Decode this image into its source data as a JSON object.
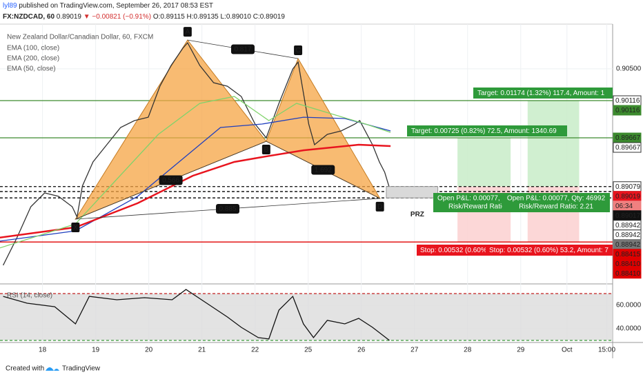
{
  "header": {
    "user": "lyl89",
    "published": "published on TradingView.com, September 26, 2017 08:53 EST",
    "symbol": "FX:NZDCAD, 60",
    "price": "0.89019",
    "change": "▼ −0.00821 (−0.91%)",
    "ohlc": "O:0.89115 H:0.89135 L:0.89010 C:0.89019"
  },
  "chart_data": [
    {
      "type": "line",
      "title": "New Zealand Dollar/Canadian Dollar, 60, FXCM",
      "xlim": [
        -0.8,
        10.73
      ],
      "ylim": [
        0.87921,
        0.91039
      ],
      "grid": true,
      "xticks": [
        {
          "value": 0,
          "label": "18"
        },
        {
          "value": 1,
          "label": "19"
        },
        {
          "value": 2,
          "label": "20"
        },
        {
          "value": 3,
          "label": "21"
        },
        {
          "value": 4,
          "label": "22"
        },
        {
          "value": 5,
          "label": "25"
        },
        {
          "value": 6,
          "label": "26"
        },
        {
          "value": 7,
          "label": "27"
        },
        {
          "value": 8,
          "label": "28"
        },
        {
          "value": 9,
          "label": "29"
        },
        {
          "value": 9.87,
          "label": "Oct"
        },
        {
          "value": 10.62,
          "label": "15:00"
        }
      ],
      "yticks": [
        {
          "value": 0.905,
          "label": "0.90500"
        }
      ],
      "series": [
        {
          "color": "#333333",
          "x": [
            -0.74,
            -0.48,
            -0.22,
            0.04,
            0.3,
            0.56,
            0.65,
            0.75,
            0.95,
            1.21,
            1.47,
            1.73,
            1.99,
            2.21,
            2.42,
            2.64,
            2.73,
            2.96,
            3.22,
            3.48,
            3.74,
            4.0,
            4.21,
            4.45,
            4.71,
            4.81,
            5.01,
            5.12,
            5.36,
            5.62,
            5.88,
            5.97,
            6.21,
            6.34,
            6.44,
            6.55
          ],
          "values": [
            0.8813,
            0.88462,
            0.88836,
            0.89002,
            0.88961,
            0.88836,
            0.88711,
            0.89085,
            0.89376,
            0.89584,
            0.89792,
            0.89875,
            0.89916,
            0.9029,
            0.9054,
            0.90747,
            0.90814,
            0.9054,
            0.90332,
            0.9029,
            0.90166,
            0.89833,
            0.89667,
            0.90083,
            0.90498,
            0.90581,
            0.89833,
            0.89584,
            0.89709,
            0.8975,
            0.89833,
            0.89875,
            0.89584,
            0.89376,
            0.89251,
            0.89019
          ]
        },
        {
          "name": "EMA (100, close)",
          "color": "#1f3fbf",
          "x": [
            -0.81,
            0.62,
            1.79,
            2.57,
            3.35,
            4.13,
            4.91,
            5.69,
            6.55
          ],
          "values": [
            0.8842,
            0.88545,
            0.88961,
            0.89376,
            0.89792,
            0.89833,
            0.89916,
            0.899,
            0.8975
          ]
        },
        {
          "name": "EMA (200, close)",
          "color": "#e8141e",
          "x": [
            -0.81,
            0.62,
            1.79,
            2.83,
            3.61,
            4.13,
            4.91,
            5.95,
            6.55
          ],
          "values": [
            0.88462,
            0.88587,
            0.88878,
            0.8921,
            0.89376,
            0.89434,
            0.89517,
            0.89584,
            0.89567
          ]
        },
        {
          "name": "EMA (50, close)",
          "color": "#7fd36b",
          "x": [
            -0.81,
            0.62,
            1.4,
            2.18,
            2.96,
            3.61,
            4.26,
            4.78,
            5.43,
            6.08,
            6.55
          ],
          "values": [
            0.88337,
            0.88628,
            0.89168,
            0.89709,
            0.90083,
            0.90166,
            0.89875,
            0.90083,
            0.89958,
            0.89833,
            0.89733
          ]
        }
      ],
      "levels": [
        {
          "value": 0.90116,
          "color": "#3c8a2e"
        },
        {
          "value": 0.89667,
          "color": "#3c8a2e"
        },
        {
          "value": 0.89079,
          "color": "#000000",
          "style": "dashed"
        },
        {
          "value": 0.89019,
          "color": "#000000",
          "style": "dashed"
        },
        {
          "value": 0.88942,
          "color": "#000000",
          "style": "dashed"
        },
        {
          "value": 0.8841,
          "color": "#e00000"
        }
      ],
      "pattern": [
        {
          "label": "X",
          "x": 0.62,
          "y": 0.88686
        },
        {
          "label": "A",
          "x": 2.73,
          "y": 0.90847
        },
        {
          "label": "B",
          "x": 4.21,
          "y": 0.89625
        },
        {
          "label": "C",
          "x": 4.81,
          "y": 0.90623
        },
        {
          "label": "D",
          "x": 6.35,
          "y": 0.88936
        }
      ],
      "ratios": [
        "0.817",
        "0.566",
        "1.692",
        "0.885"
      ],
      "prz": {
        "label": "PRZ",
        "x": [
          6.47,
          7.44
        ],
        "y": [
          0.89079,
          0.88942
        ]
      },
      "positions": [
        {
          "x": [
            7.81,
            8.81
          ],
          "entry": 0.89079,
          "target": 0.89667,
          "stop": 0.8841,
          "target_label": "Target: 0.00725 (0.82%) 72.5, Amount: 1340.69",
          "pnl_label": "Open P&L: 0.00077,",
          "rr_label": "Risk/Reward Ratio",
          "stop_label": "Stop: 0.00532 (0.60%"
        },
        {
          "x": [
            9.13,
            10.1
          ],
          "entry": 0.89079,
          "target": 0.90116,
          "stop": 0.8841,
          "target_label": "Target: 0.01174 (1.32%) 117.4, Amount: 1",
          "pnl_label": "Open P&L: 0.00077, Qty: 46992",
          "rr_label": "Risk/Reward Ratio: 2.21",
          "stop_label": "Stop: 0.00532 (0.60%) 53.2, Amount: 7"
        }
      ],
      "price_labels": [
        {
          "value": 0.90116,
          "label": "0.90116",
          "color": "#ffffff"
        },
        {
          "value": 0.90116,
          "label": "0.90116",
          "color": "#3c8a2e"
        },
        {
          "value": 0.89667,
          "label": "0.89667",
          "color": "#3c8a2e"
        },
        {
          "value": 0.89667,
          "label": "0.89667",
          "color": "#ffffff"
        },
        {
          "value": 0.89079,
          "label": "0.89079",
          "color": "#ffffff"
        },
        {
          "value": 0.89019,
          "label": "0.89019",
          "color": "#e8141e"
        },
        {
          "label": "06:34",
          "color": "#f08080"
        },
        {
          "value": 0.89017,
          "label": "0.89017",
          "color": "#111111"
        },
        {
          "value": 0.88942,
          "label": "0.88942",
          "color": "#ffffff"
        },
        {
          "value": 0.88942,
          "label": "0.88942",
          "color": "#ffffff"
        },
        {
          "value": 0.88942,
          "label": "0.88942",
          "color": "#777777"
        },
        {
          "value": 0.88415,
          "label": "0.88415",
          "color": "#e00000"
        },
        {
          "value": 0.8841,
          "label": "0.88410",
          "color": "#e00000"
        },
        {
          "value": 0.8841,
          "label": "0.88410",
          "color": "#e00000"
        }
      ]
    },
    {
      "type": "line",
      "title": "RSI (14, close)",
      "ylim": [
        29.4,
        76.5
      ],
      "yticks": [
        {
          "value": 60,
          "label": "60.0000"
        },
        {
          "value": 40,
          "label": "40.0000"
        }
      ],
      "levels": [
        {
          "value": 70,
          "color": "#c83232"
        },
        {
          "value": 30,
          "color": "#3a9a3a"
        }
      ],
      "series": [
        {
          "color": "#111111",
          "x": [
            -0.74,
            -0.29,
            0.23,
            0.62,
            0.88,
            1.4,
            1.92,
            2.44,
            2.7,
            3.09,
            3.48,
            3.74,
            4.06,
            4.26,
            4.45,
            4.71,
            4.91,
            5.1,
            5.36,
            5.69,
            5.95,
            6.21,
            6.53
          ],
          "values": [
            67.6,
            61.8,
            58.8,
            44.1,
            67.6,
            64.7,
            66.5,
            64.7,
            73.5,
            61.8,
            50,
            41.2,
            32.4,
            31.2,
            55.9,
            67.6,
            44.1,
            32.4,
            47.1,
            44.1,
            48.8,
            41.2,
            30
          ]
        }
      ]
    }
  ],
  "footer": {
    "created_with": "Created with",
    "brand": "TradingView"
  }
}
